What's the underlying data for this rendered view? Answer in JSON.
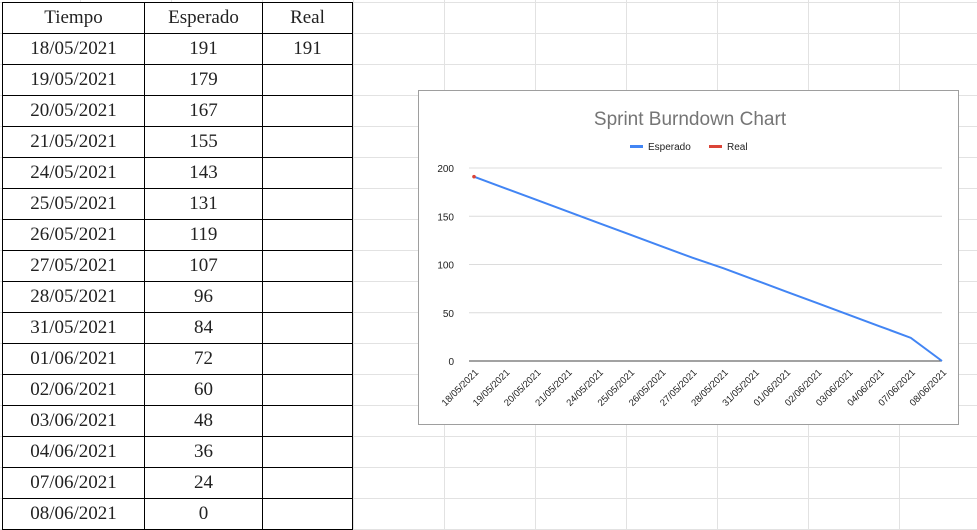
{
  "table": {
    "headers": [
      "Tiempo",
      "Esperado",
      "Real"
    ],
    "rows": [
      [
        "18/05/2021",
        "191",
        "191"
      ],
      [
        "19/05/2021",
        "179",
        ""
      ],
      [
        "20/05/2021",
        "167",
        ""
      ],
      [
        "21/05/2021",
        "155",
        ""
      ],
      [
        "24/05/2021",
        "143",
        ""
      ],
      [
        "25/05/2021",
        "131",
        ""
      ],
      [
        "26/05/2021",
        "119",
        ""
      ],
      [
        "27/05/2021",
        "107",
        ""
      ],
      [
        "28/05/2021",
        "96",
        ""
      ],
      [
        "31/05/2021",
        "84",
        ""
      ],
      [
        "01/06/2021",
        "72",
        ""
      ],
      [
        "02/06/2021",
        "60",
        ""
      ],
      [
        "03/06/2021",
        "48",
        ""
      ],
      [
        "04/06/2021",
        "36",
        ""
      ],
      [
        "07/06/2021",
        "24",
        ""
      ],
      [
        "08/06/2021",
        "0",
        ""
      ]
    ]
  },
  "chart_data": {
    "type": "line",
    "title": "Sprint Burndown Chart",
    "xlabel": "",
    "ylabel": "",
    "categories": [
      "18/05/2021",
      "19/05/2021",
      "20/05/2021",
      "21/05/2021",
      "24/05/2021",
      "25/05/2021",
      "26/05/2021",
      "27/05/2021",
      "28/05/2021",
      "31/05/2021",
      "01/06/2021",
      "02/06/2021",
      "03/06/2021",
      "04/06/2021",
      "07/06/2021",
      "08/06/2021"
    ],
    "series": [
      {
        "name": "Esperado",
        "color": "#4285f4",
        "values": [
          191,
          179,
          167,
          155,
          143,
          131,
          119,
          107,
          96,
          84,
          72,
          60,
          48,
          36,
          24,
          0
        ]
      },
      {
        "name": "Real",
        "color": "#db4437",
        "values": [
          191,
          null,
          null,
          null,
          null,
          null,
          null,
          null,
          null,
          null,
          null,
          null,
          null,
          null,
          null,
          null
        ]
      }
    ],
    "ylim": [
      0,
      200
    ],
    "yticks": [
      "0",
      "50",
      "100",
      "150",
      "200"
    ],
    "grid": true,
    "legend": "top"
  }
}
